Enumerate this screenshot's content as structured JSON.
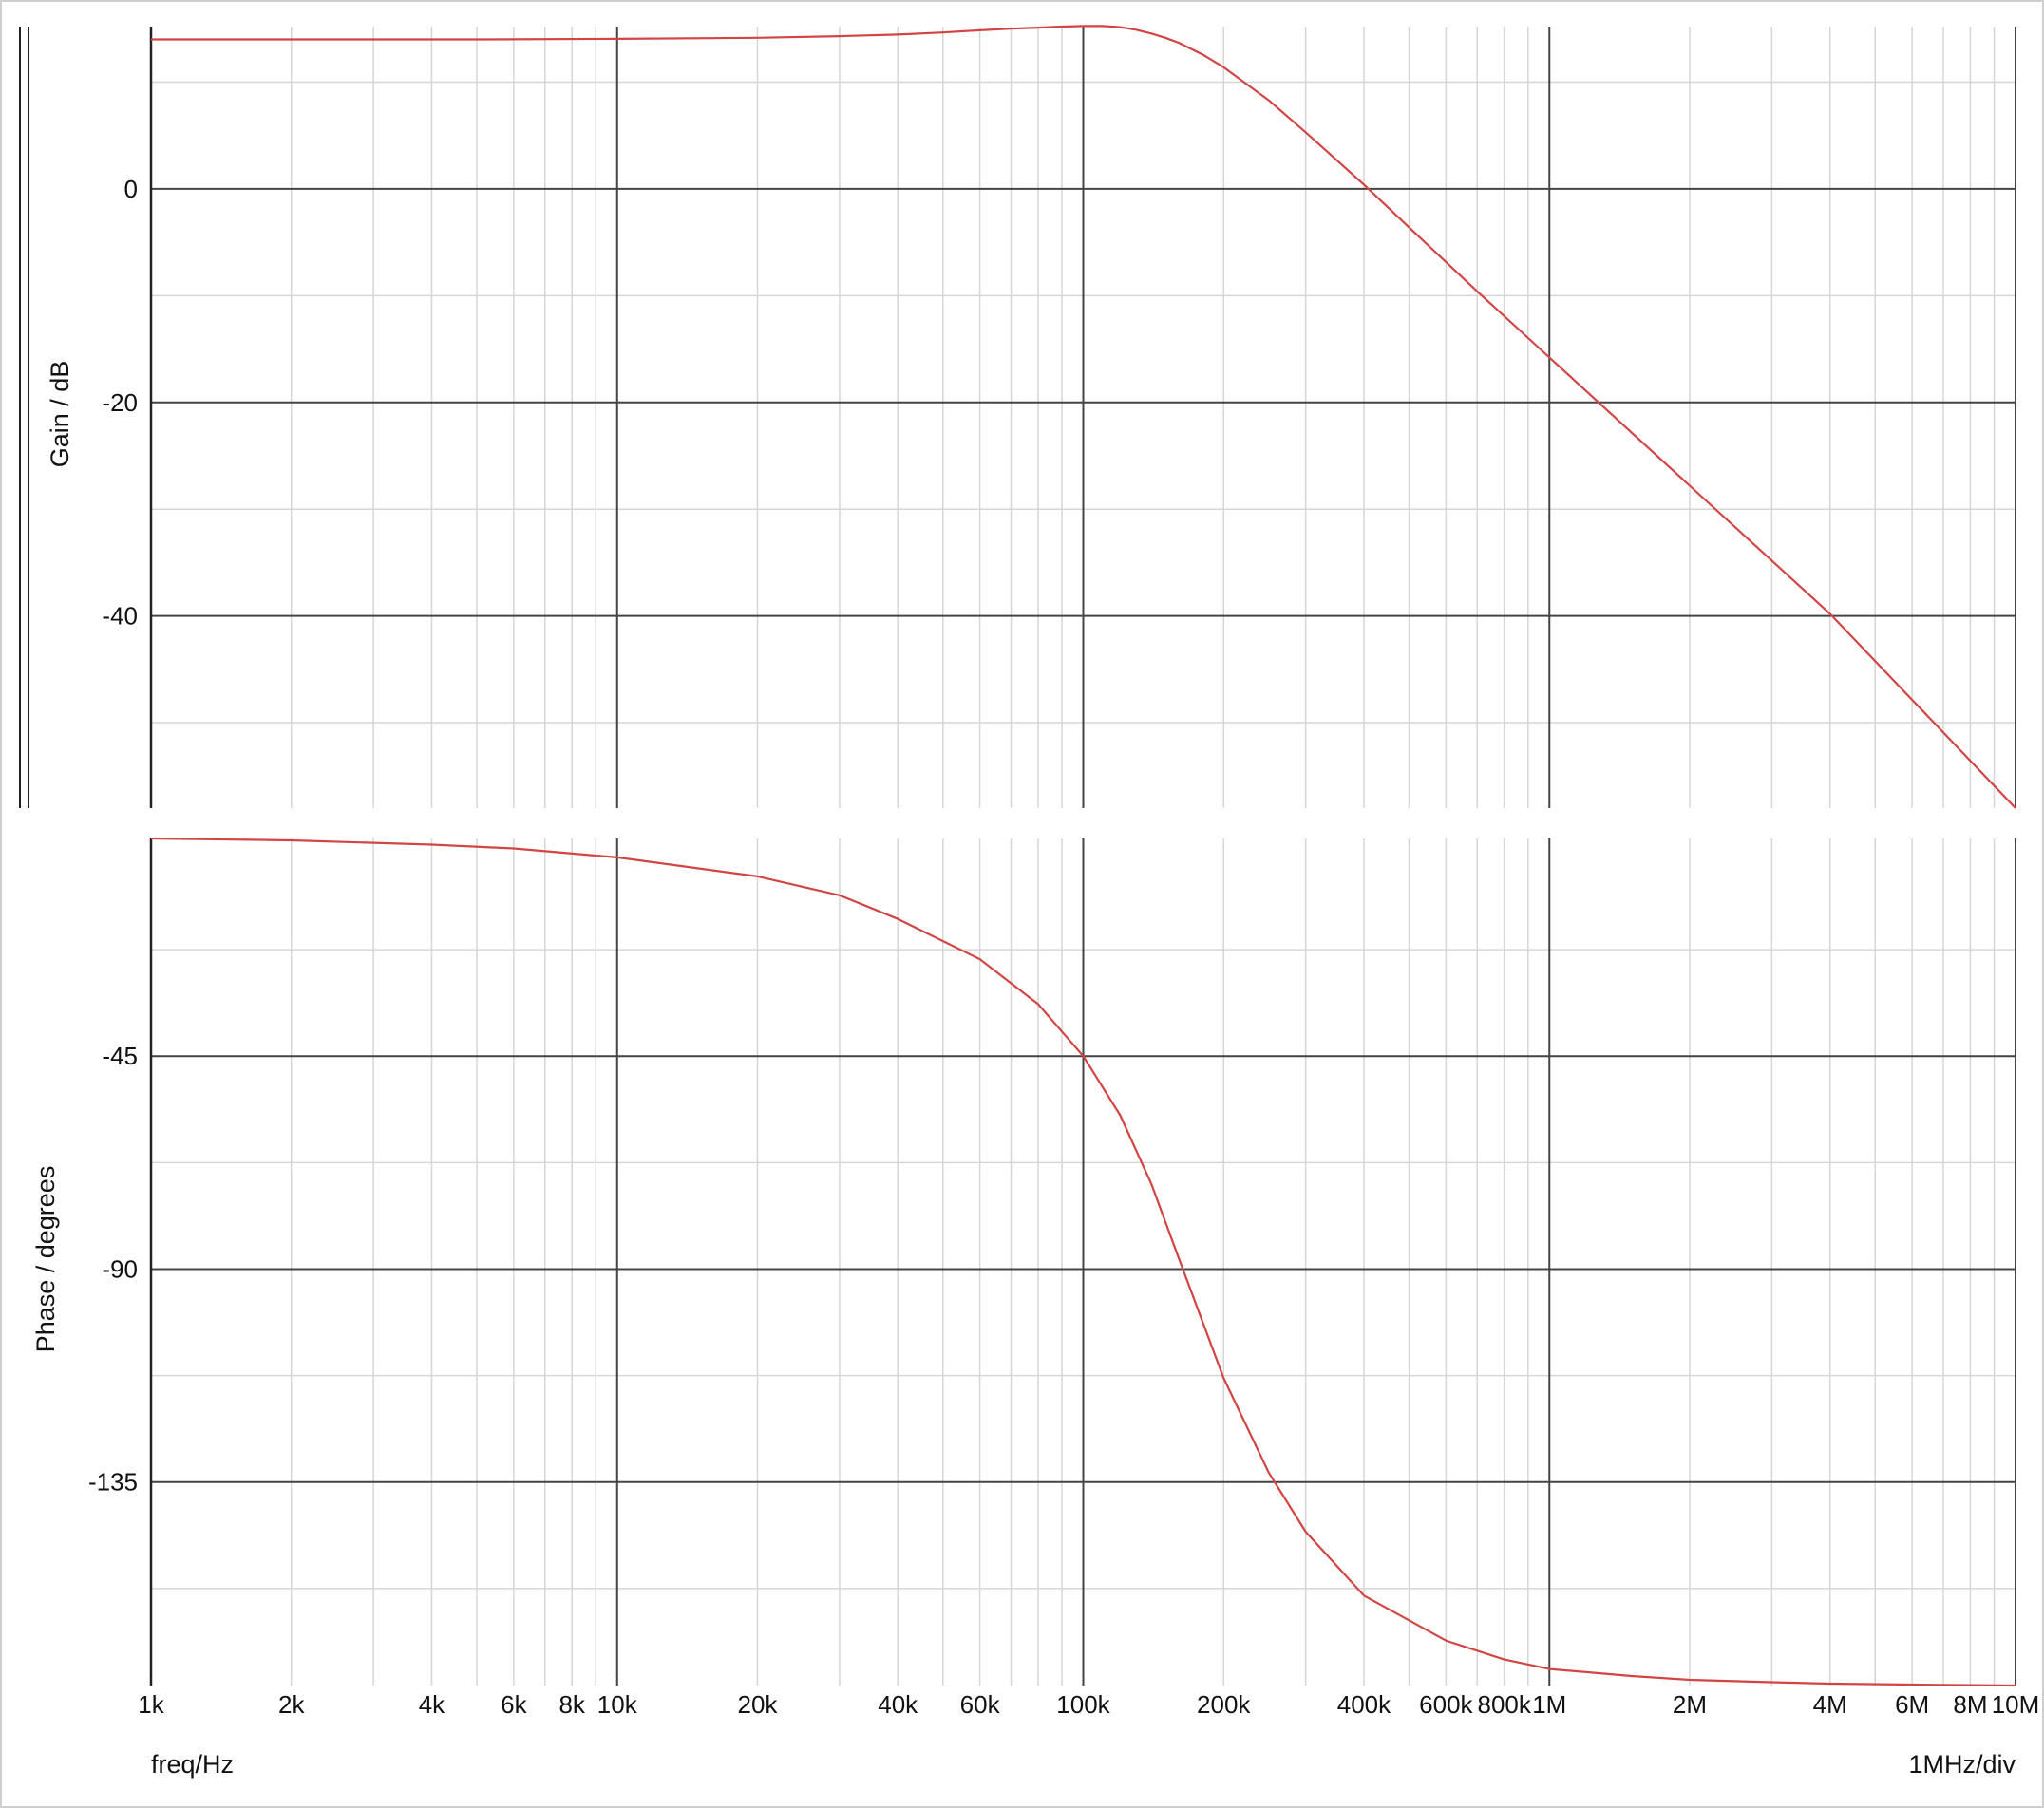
{
  "chart_data": {
    "type": "line",
    "x_scale": "log",
    "x_range": [
      1000,
      10000000
    ],
    "x_tick_labels": [
      {
        "value": 1000,
        "label": "1k"
      },
      {
        "value": 2000,
        "label": "2k"
      },
      {
        "value": 4000,
        "label": "4k"
      },
      {
        "value": 6000,
        "label": "6k"
      },
      {
        "value": 8000,
        "label": "8k"
      },
      {
        "value": 10000,
        "label": "10k"
      },
      {
        "value": 20000,
        "label": "20k"
      },
      {
        "value": 40000,
        "label": "40k"
      },
      {
        "value": 60000,
        "label": "60k"
      },
      {
        "value": 100000,
        "label": "100k"
      },
      {
        "value": 200000,
        "label": "200k"
      },
      {
        "value": 400000,
        "label": "400k"
      },
      {
        "value": 600000,
        "label": "600k"
      },
      {
        "value": 800000,
        "label": "800k"
      },
      {
        "value": 1000000,
        "label": "1M"
      },
      {
        "value": 2000000,
        "label": "2M"
      },
      {
        "value": 4000000,
        "label": "4M"
      },
      {
        "value": 6000000,
        "label": "6M"
      },
      {
        "value": 8000000,
        "label": "8M"
      },
      {
        "value": 10000000,
        "label": "10M"
      }
    ],
    "xlabel": "freq/Hz",
    "x_division_note": "1MHz/div",
    "grid": true,
    "line_color": "#d24545",
    "panels": [
      {
        "name": "gain",
        "ylabel": "Gain / dB",
        "ylim": [
          -58,
          15.2
        ],
        "y_ticks": [
          0,
          -20,
          -40
        ],
        "y_tick_labels": [
          "0",
          "-20",
          "-40"
        ],
        "y_minor_ticks": [
          10,
          -10,
          -30,
          -50
        ],
        "series": [
          {
            "x": [
              1000,
              2000,
              5000,
              10000,
              20000,
              30000,
              40000,
              50000,
              60000,
              70000,
              80000,
              90000,
              100000,
              110000,
              120000,
              130000,
              140000,
              150000,
              160000,
              180000,
              200000,
              250000,
              300000,
              400000,
              500000,
              700000,
              1000000,
              2000000,
              4000000,
              10000000
            ],
            "y": [
              14.0,
              14.0,
              14.0,
              14.05,
              14.15,
              14.3,
              14.45,
              14.65,
              14.85,
              15.0,
              15.1,
              15.2,
              15.25,
              15.25,
              15.15,
              14.9,
              14.55,
              14.15,
              13.7,
              12.6,
              11.4,
              8.3,
              5.3,
              0.4,
              -3.6,
              -9.6,
              -15.8,
              -27.8,
              -39.8,
              -58.0
            ]
          }
        ]
      },
      {
        "name": "phase",
        "ylabel": "Phase / degrees",
        "ylim": [
          -178,
          1
        ],
        "y_ticks": [
          -45,
          -90,
          -135
        ],
        "y_tick_labels": [
          "-45",
          "-90",
          "-135"
        ],
        "y_minor_ticks": [
          -22.5,
          -67.5,
          -112.5,
          -157.5
        ],
        "series": [
          {
            "x": [
              1000,
              2000,
              4000,
              6000,
              10000,
              20000,
              30000,
              40000,
              60000,
              80000,
              100000,
              120000,
              140000,
              160000,
              200000,
              250000,
              300000,
              400000,
              600000,
              800000,
              1000000,
              1500000,
              2000000,
              3000000,
              4000000,
              6000000,
              10000000
            ],
            "y": [
              1.0,
              0.6,
              -0.3,
              -1.1,
              -3.0,
              -7.0,
              -11.0,
              -16.0,
              -24.5,
              -34.0,
              -45.0,
              -57.5,
              -72.0,
              -87.5,
              -113.0,
              -133.0,
              -145.5,
              -159.0,
              -168.5,
              -172.5,
              -174.5,
              -176.0,
              -176.8,
              -177.3,
              -177.6,
              -177.8,
              -178.0
            ]
          }
        ]
      }
    ]
  }
}
